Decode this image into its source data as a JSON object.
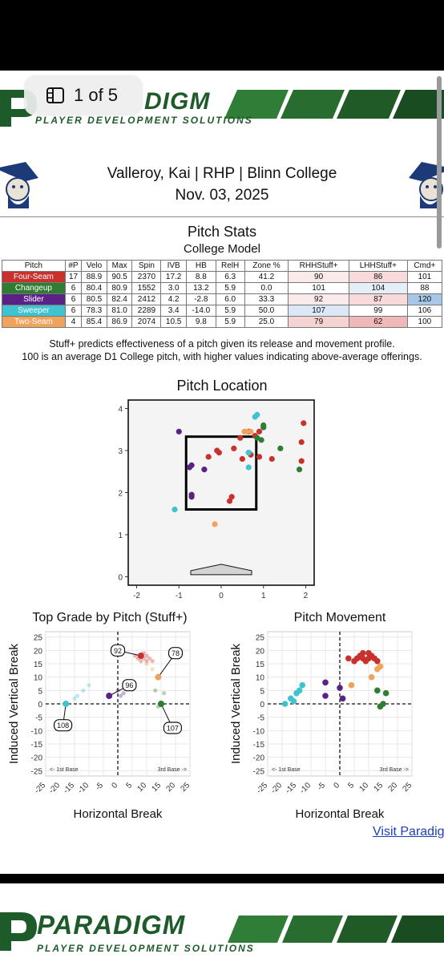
{
  "viewer": {
    "page_indicator": "1 of 5"
  },
  "header": {
    "brand": "PARADIGM",
    "brand_partial": "DIGM",
    "tagline": "PLAYER DEVELOPMENT SOLUTIONS",
    "player_line": "Valleroy, Kai | RHP | Blinn College",
    "date": "Nov. 03, 2025"
  },
  "pitch_stats": {
    "title": "Pitch Stats",
    "subtitle": "College Model",
    "columns": [
      "Pitch",
      "#P",
      "Velo",
      "Max",
      "Spin",
      "IVB",
      "HB",
      "RelH",
      "Zone %",
      "RHHStuff+",
      "LHHStuff+",
      "Cmd+"
    ],
    "rows": [
      {
        "pitch": "Four-Seam",
        "color": "#c8312c",
        "cells": [
          "17",
          "88.9",
          "90.5",
          "2370",
          "17.2",
          "8.8",
          "6.3",
          "41.2",
          "90",
          "86",
          "101"
        ],
        "shade": [
          "",
          "",
          "",
          "",
          "",
          "",
          "",
          "",
          "#fbeaea",
          "#f8dada",
          ""
        ]
      },
      {
        "pitch": "Changeup",
        "color": "#2e7d32",
        "cells": [
          "6",
          "80.4",
          "80.9",
          "1552",
          "3.0",
          "13.2",
          "5.9",
          "0.0",
          "101",
          "104",
          "88"
        ],
        "shade": [
          "",
          "",
          "",
          "",
          "",
          "",
          "",
          "",
          "",
          "#e6eef7",
          ""
        ]
      },
      {
        "pitch": "Slider",
        "color": "#5b2286",
        "cells": [
          "6",
          "80.5",
          "82.4",
          "2412",
          "4.2",
          "-2.8",
          "6.0",
          "33.3",
          "92",
          "87",
          "120"
        ],
        "shade": [
          "",
          "",
          "",
          "",
          "",
          "",
          "",
          "",
          "#fbeaea",
          "#f8dada",
          "#a8c6e6"
        ]
      },
      {
        "pitch": "Sweeper",
        "color": "#3fc4cf",
        "cells": [
          "6",
          "78.3",
          "81.0",
          "2289",
          "3.4",
          "-14.0",
          "5.9",
          "50.0",
          "107",
          "99",
          "106"
        ],
        "shade": [
          "",
          "",
          "",
          "",
          "",
          "",
          "",
          "",
          "#dce8f5",
          "",
          ""
        ]
      },
      {
        "pitch": "Two-Seam",
        "color": "#f0a35a",
        "cells": [
          "4",
          "85.4",
          "86.9",
          "2074",
          "10.5",
          "9.8",
          "5.9",
          "25.0",
          "79",
          "62",
          "100"
        ],
        "shade": [
          "",
          "",
          "",
          "",
          "",
          "",
          "",
          "",
          "#f6d3d3",
          "#f0b9b9",
          ""
        ]
      }
    ]
  },
  "notes": {
    "line1": "Stuff+ predicts effectiveness of a pitch given its release and movement profile.",
    "line2": "100 is an average D1 College pitch, with higher values indicating above-average offerings."
  },
  "colors": {
    "four_seam": "#c8312c",
    "changeup": "#2e7d32",
    "slider": "#5b2286",
    "sweeper": "#3fc4cf",
    "two_seam": "#f0a35a",
    "brand_green": "#1e5b2a"
  },
  "chart_data": [
    {
      "type": "scatter",
      "title": "Pitch Location",
      "xlabel": "",
      "ylabel": "",
      "xlim": [
        -2.2,
        2.2
      ],
      "ylim": [
        -0.2,
        4.2
      ],
      "xticks": [
        "-2",
        "-1",
        "0",
        "1",
        "2"
      ],
      "yticks": [
        "0",
        "1",
        "2",
        "3",
        "4"
      ],
      "strike_zone": {
        "x": [
          -0.83,
          0.83
        ],
        "y": [
          1.6,
          3.33
        ]
      },
      "series": [
        {
          "pitch": "Four-Seam",
          "color": "#c8312c",
          "points": [
            [
              -0.3,
              2.85
            ],
            [
              -0.1,
              3.0
            ],
            [
              -0.05,
              2.95
            ],
            [
              0.3,
              3.05
            ],
            [
              0.45,
              3.3
            ],
            [
              0.5,
              2.8
            ],
            [
              0.7,
              2.9
            ],
            [
              0.9,
              2.85
            ],
            [
              0.9,
              3.45
            ],
            [
              1.2,
              2.8
            ],
            [
              1.9,
              2.75
            ],
            [
              1.9,
              3.2
            ],
            [
              1.95,
              3.65
            ],
            [
              0.2,
              1.8
            ],
            [
              0.25,
              1.9
            ],
            [
              0.65,
              3.45
            ],
            [
              0.8,
              3.35
            ]
          ]
        },
        {
          "pitch": "Changeup",
          "color": "#2e7d32",
          "points": [
            [
              1.0,
              3.6
            ],
            [
              1.4,
              3.05
            ],
            [
              1.85,
              2.55
            ],
            [
              0.95,
              3.25
            ],
            [
              0.85,
              3.3
            ],
            [
              1.0,
              3.55
            ]
          ]
        },
        {
          "pitch": "Slider",
          "color": "#5b2286",
          "points": [
            [
              -1.0,
              3.45
            ],
            [
              -0.7,
              2.65
            ],
            [
              -0.4,
              2.55
            ],
            [
              -0.7,
              1.9
            ],
            [
              -0.75,
              2.6
            ],
            [
              -0.7,
              1.95
            ]
          ]
        },
        {
          "pitch": "Sweeper",
          "color": "#3fc4cf",
          "points": [
            [
              0.85,
              3.85
            ],
            [
              0.65,
              2.6
            ],
            [
              0.65,
              2.95
            ],
            [
              -1.1,
              1.6
            ],
            [
              0.8,
              3.8
            ],
            [
              0.65,
              2.95
            ]
          ]
        },
        {
          "pitch": "Two-Seam",
          "color": "#f0a35a",
          "points": [
            [
              -0.15,
              1.25
            ],
            [
              0.6,
              3.45
            ],
            [
              0.7,
              3.45
            ],
            [
              0.55,
              3.45
            ]
          ]
        }
      ]
    },
    {
      "type": "scatter",
      "title": "Top Grade by Pitch (Stuff+)",
      "xlabel": "Horizontal Break",
      "ylabel": "Induced Vertical Break",
      "xlim": [
        -25,
        25
      ],
      "ylim": [
        -27,
        27
      ],
      "xticks": [
        "-25",
        "-20",
        "-15",
        "-10",
        "-5",
        "0",
        "5",
        "10",
        "15",
        "20",
        "25"
      ],
      "yticks": [
        "-25",
        "-20",
        "-15",
        "-10",
        "-5",
        "0",
        "5",
        "10",
        "15",
        "20",
        "25"
      ],
      "annotations": [
        "<- 1st Base",
        "3rd Base ->"
      ],
      "labels": [
        {
          "text": "92",
          "pitch": "Four-Seam",
          "point": [
            8,
            18
          ],
          "label_at": [
            0,
            20
          ]
        },
        {
          "text": "78",
          "pitch": "Two-Seam",
          "point": [
            14,
            10
          ],
          "label_at": [
            20,
            19
          ]
        },
        {
          "text": "96",
          "pitch": "Slider",
          "point": [
            -3,
            3
          ],
          "label_at": [
            4,
            7
          ]
        },
        {
          "text": "108",
          "pitch": "Sweeper",
          "point": [
            -18,
            0
          ],
          "label_at": [
            -19,
            -8
          ]
        },
        {
          "text": "107",
          "pitch": "Changeup",
          "point": [
            15,
            0
          ],
          "label_at": [
            19,
            -9
          ]
        }
      ],
      "series": [
        {
          "pitch": "Four-Seam",
          "color": "#c8312c",
          "points": [
            [
              6,
              18
            ],
            [
              7,
              17
            ],
            [
              8,
              18
            ],
            [
              9,
              17
            ],
            [
              10,
              18
            ],
            [
              11,
              17
            ],
            [
              12,
              16
            ],
            [
              8,
              16
            ],
            [
              10,
              16
            ],
            [
              9,
              19
            ]
          ]
        },
        {
          "pitch": "Changeup",
          "color": "#2e7d32",
          "points": [
            [
              13,
              5
            ],
            [
              15,
              0
            ],
            [
              16,
              4
            ],
            [
              14,
              -1
            ]
          ]
        },
        {
          "pitch": "Slider",
          "color": "#5b2286",
          "points": [
            [
              -3,
              3
            ],
            [
              0,
              5
            ],
            [
              1,
              3
            ],
            [
              2,
              4
            ]
          ]
        },
        {
          "pitch": "Sweeper",
          "color": "#3fc4cf",
          "points": [
            [
              -18,
              0
            ],
            [
              -14,
              3
            ],
            [
              -12,
              5
            ],
            [
              -10,
              7
            ],
            [
              -15,
              2
            ]
          ]
        },
        {
          "pitch": "Two-Seam",
          "color": "#f0a35a",
          "points": [
            [
              14,
              10
            ],
            [
              12,
              13
            ],
            [
              3,
              7
            ],
            [
              10,
              15
            ]
          ]
        }
      ]
    },
    {
      "type": "scatter",
      "title": "Pitch Movement",
      "xlabel": "Horizontal Break",
      "ylabel": "Induced Vertical Break",
      "xlim": [
        -25,
        25
      ],
      "ylim": [
        -27,
        27
      ],
      "xticks": [
        "-25",
        "-20",
        "-15",
        "-10",
        "-5",
        "0",
        "5",
        "10",
        "15",
        "20",
        "25"
      ],
      "yticks": [
        "-25",
        "-20",
        "-15",
        "-10",
        "-5",
        "0",
        "5",
        "10",
        "15",
        "20",
        "25"
      ],
      "annotations": [
        "<- 1st Base",
        "3rd Base ->"
      ],
      "series": [
        {
          "pitch": "Four-Seam",
          "color": "#c8312c",
          "points": [
            [
              3,
              17
            ],
            [
              5,
              16
            ],
            [
              6,
              17
            ],
            [
              7,
              18
            ],
            [
              8,
              17
            ],
            [
              9,
              16
            ],
            [
              10,
              19
            ],
            [
              11,
              18
            ],
            [
              12,
              17
            ],
            [
              13,
              16
            ],
            [
              8,
              19
            ],
            [
              10,
              17
            ]
          ]
        },
        {
          "pitch": "Changeup",
          "color": "#2e7d32",
          "points": [
            [
              13,
              5
            ],
            [
              16,
              4
            ],
            [
              14,
              -1
            ],
            [
              15,
              0
            ]
          ]
        },
        {
          "pitch": "Slider",
          "color": "#5b2286",
          "points": [
            [
              -5,
              8
            ],
            [
              -5,
              3
            ],
            [
              0,
              6
            ],
            [
              1,
              2
            ]
          ]
        },
        {
          "pitch": "Sweeper",
          "color": "#3fc4cf",
          "points": [
            [
              -19,
              0
            ],
            [
              -17,
              2
            ],
            [
              -15,
              4
            ],
            [
              -13,
              7
            ],
            [
              -14,
              5
            ],
            [
              -16,
              1
            ]
          ]
        },
        {
          "pitch": "Two-Seam",
          "color": "#f0a35a",
          "points": [
            [
              4,
              7
            ],
            [
              11,
              10
            ],
            [
              13,
              13
            ],
            [
              14,
              14
            ]
          ]
        }
      ]
    }
  ],
  "footer": {
    "link": "Visit Paradig"
  }
}
